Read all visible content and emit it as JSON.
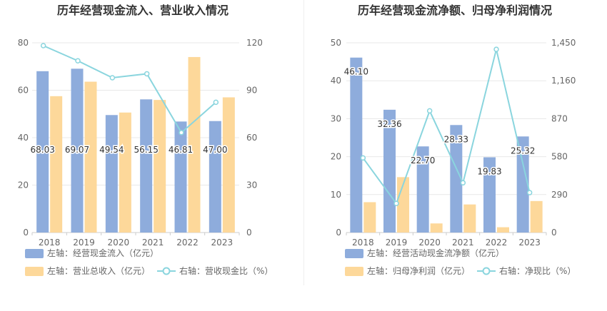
{
  "chart_data": [
    {
      "type": "bar",
      "title": "历年经营现金流入、营业收入情况",
      "categories": [
        "2018",
        "2019",
        "2020",
        "2021",
        "2022",
        "2023"
      ],
      "left_axis": {
        "ticks": [
          "0",
          "20",
          "40",
          "60",
          "80"
        ],
        "ylim": [
          0,
          80
        ]
      },
      "right_axis": {
        "ticks": [
          "0",
          "30",
          "60",
          "90",
          "120"
        ],
        "ylim": [
          0,
          120
        ]
      },
      "series": [
        {
          "name": "左轴：经营现金流入（亿元）",
          "axis": "left",
          "kind": "bar",
          "color": "#8eacdc",
          "values": [
            68.03,
            69.07,
            49.54,
            56.15,
            46.81,
            47.0
          ],
          "labels": [
            "68.03",
            "69.07",
            "49.54",
            "56.15",
            "46.81",
            "47.00"
          ]
        },
        {
          "name": "左轴：营业总收入（亿元）",
          "axis": "left",
          "kind": "bar",
          "color": "#fdd89a",
          "values": [
            57.5,
            63.6,
            50.6,
            55.9,
            74.0,
            57.0
          ]
        },
        {
          "name": "右轴：营收现金比（%）",
          "axis": "right",
          "kind": "line",
          "color": "#8ad5de",
          "values": [
            118.2,
            108.6,
            97.9,
            100.4,
            63.2,
            82.4
          ]
        }
      ]
    },
    {
      "type": "bar",
      "title": "历年经营现金流净额、归母净利润情况",
      "categories": [
        "2018",
        "2019",
        "2020",
        "2021",
        "2022",
        "2023"
      ],
      "left_axis": {
        "ticks": [
          "0",
          "10",
          "20",
          "30",
          "40",
          "50"
        ],
        "ylim": [
          0,
          50
        ]
      },
      "right_axis": {
        "ticks": [
          "0",
          "290",
          "580",
          "870",
          "1,160",
          "1,450"
        ],
        "ylim": [
          0,
          1450
        ]
      },
      "series": [
        {
          "name": "左轴：经营活动现金流净额（亿元）",
          "axis": "left",
          "kind": "bar",
          "color": "#8eacdc",
          "values": [
            46.1,
            32.36,
            22.7,
            28.33,
            19.83,
            25.32
          ],
          "labels": [
            "46.10",
            "32.36",
            "22.70",
            "28.33",
            "19.83",
            "25.32"
          ]
        },
        {
          "name": "左轴：归母净利润（亿元）",
          "axis": "left",
          "kind": "bar",
          "color": "#fdd89a",
          "values": [
            8.0,
            14.6,
            2.4,
            7.4,
            1.4,
            8.3
          ]
        },
        {
          "name": "右轴：净现比（%）",
          "axis": "right",
          "kind": "line",
          "color": "#8ad5de",
          "values": [
            570,
            222,
            930,
            380,
            1400,
            305
          ]
        }
      ]
    }
  ]
}
